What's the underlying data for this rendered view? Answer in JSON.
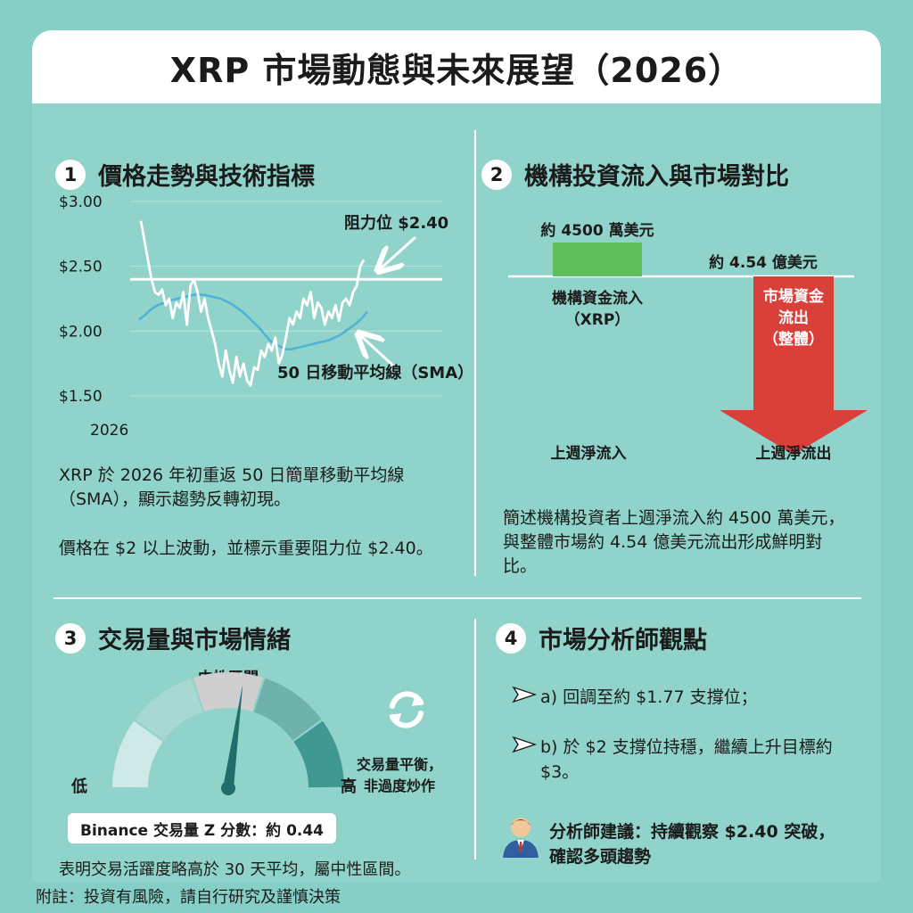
{
  "title": "XRP 市場動態與未來展望（2026）",
  "panel1": {
    "num": "1",
    "heading": "價格走勢與技術指標",
    "resistance_label": "阻力位 $2.40",
    "sma_label": "50 日移動平均線（SMA）",
    "para1": "XRP 於 2026 年初重返 50 日簡單移動平均線（SMA），顯示趨勢反轉初現。",
    "para2": "價格在 $2 以上波動，並標示重要阻力位 $2.40。"
  },
  "panel2": {
    "num": "2",
    "heading": "機構投資流入與市場對比",
    "inflow_value": "約 4500 萬美元",
    "outflow_value": "約 4.54 億美元",
    "inflow_label_1": "機構資金流入",
    "inflow_label_2": "（XRP）",
    "outflow_label_1": "市場資金",
    "outflow_label_2": "流出",
    "outflow_label_3": "（整體）",
    "inflow_caption": "上週淨流入",
    "outflow_caption": "上週淨流出",
    "para": "簡述機構投資者上週淨流入約 4500 萬美元，與整體市場約 4.54 億美元流出形成鮮明對比。"
  },
  "panel3": {
    "num": "3",
    "heading": "交易量與市場情緒",
    "gauge_center": "中性區間",
    "gauge_low": "低",
    "gauge_high": "高",
    "balance_1": "交易量平衡，",
    "balance_2": "非過度炒作",
    "zscore": "Binance 交易量 Z 分數：約 0.44",
    "zscore_value": 0.44,
    "para": "表明交易活躍度略高於 30 天平均，屬中性區間。"
  },
  "panel4": {
    "num": "4",
    "heading": "市場分析師觀點",
    "bullet_a": "a) 回調至約 $1.77 支撐位；",
    "bullet_b": "b) 於 $2 支撐位持穩，繼續上升目標約 $3。",
    "advice_1": "分析師建議：持續觀察 $2.40 突破，",
    "advice_2": "確認多頭趨勢"
  },
  "footnote": "附註：投資有風險，請自行研究及謹慎決策",
  "chart_data": [
    {
      "type": "line",
      "title": "",
      "xlabel": "",
      "ylabel": "",
      "x_tick_labels": [
        "2026"
      ],
      "y_tick_labels": [
        "$3.00",
        "$2.50",
        "$2.00",
        "$1.50"
      ],
      "ylim": [
        1.5,
        3.0
      ],
      "grid": true,
      "resistance_level": 2.4,
      "series": [
        {
          "name": "",
          "values": [
            2.85,
            2.7,
            2.55,
            2.4,
            2.3,
            2.28,
            2.32,
            2.2,
            2.25,
            2.1,
            2.22,
            2.18,
            2.3,
            2.05,
            2.35,
            2.4,
            2.3,
            2.15,
            2.25,
            2.1,
            2.0,
            1.9,
            1.75,
            1.65,
            1.85,
            1.7,
            1.6,
            1.8,
            1.65,
            1.75,
            1.62,
            1.58,
            1.72,
            1.7,
            1.85,
            1.8,
            1.9,
            1.85,
            1.95,
            1.75,
            1.82,
            1.95,
            2.1,
            2.05,
            2.15,
            2.1,
            2.25,
            2.2,
            2.3,
            2.1,
            2.22,
            2.18,
            2.05,
            2.15,
            2.1,
            2.2,
            2.08,
            2.22,
            2.25,
            2.2,
            2.3,
            2.35,
            2.5,
            2.55
          ]
        },
        {
          "name": "50 日移動平均線（SMA）",
          "values": [
            2.09,
            2.12,
            2.16,
            2.19,
            2.21,
            2.22,
            2.24,
            2.25,
            2.26,
            2.27,
            2.28,
            2.28,
            2.28,
            2.27,
            2.26,
            2.25,
            2.23,
            2.21,
            2.18,
            2.15,
            2.11,
            2.07,
            2.03,
            1.98,
            1.93,
            1.9,
            1.88,
            1.86,
            1.86,
            1.87,
            1.88,
            1.89,
            1.9,
            1.91,
            1.92,
            1.93,
            1.95,
            1.97,
            2.0,
            2.03,
            2.06,
            2.1,
            2.15
          ]
        }
      ]
    },
    {
      "type": "bar",
      "title": "",
      "categories": [
        "上週淨流入",
        "上週淨流出"
      ],
      "series": [
        {
          "name": "",
          "values": [
            45000000,
            -454000000
          ]
        }
      ]
    }
  ]
}
